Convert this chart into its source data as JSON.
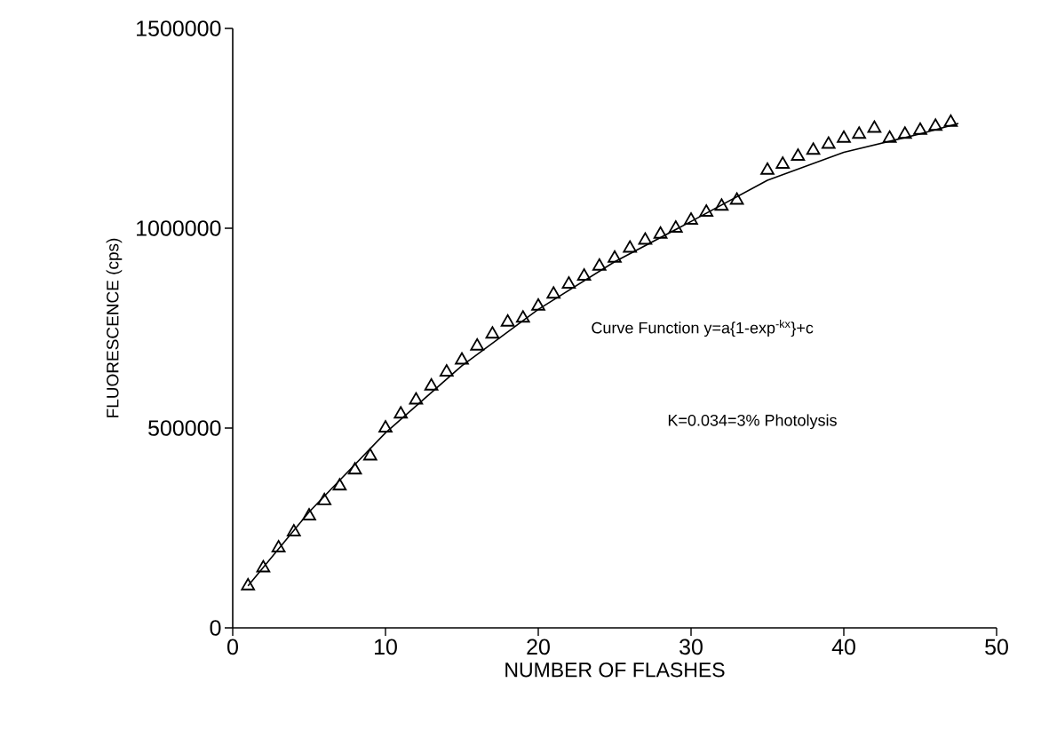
{
  "chart_data": {
    "type": "scatter",
    "xlabel": "NUMBER OF FLASHES",
    "ylabel": "FLUORESCENCE (cps)",
    "xlim": [
      0,
      50
    ],
    "ylim": [
      0,
      1500000
    ],
    "xticks": [
      0,
      10,
      20,
      30,
      40,
      50
    ],
    "yticks": [
      0,
      500000,
      1000000,
      1500000
    ],
    "marker": "triangle",
    "annotations": [
      "Curve Function y=a{1-exp$^{-kx}$}+c",
      "K=0.034=3% Photolysis"
    ],
    "series": [
      {
        "color": "#000000",
        "x": [
          1,
          2,
          3,
          4,
          5,
          6,
          7,
          8,
          9,
          10,
          11,
          12,
          13,
          14,
          15,
          16,
          17,
          18,
          19,
          20,
          21,
          22,
          23,
          24,
          25,
          26,
          27,
          28,
          29,
          30,
          31,
          32,
          33,
          35,
          36,
          37,
          38,
          39,
          40,
          41,
          42,
          43,
          44,
          45,
          46,
          47
        ],
        "values": [
          105000,
          150000,
          200000,
          240000,
          280000,
          318000,
          355000,
          395000,
          430000,
          500000,
          535000,
          570000,
          605000,
          640000,
          670000,
          705000,
          735000,
          765000,
          775000,
          805000,
          835000,
          860000,
          880000,
          905000,
          925000,
          950000,
          970000,
          985000,
          1000000,
          1020000,
          1040000,
          1055000,
          1070000,
          1145000,
          1160000,
          1180000,
          1195000,
          1210000,
          1225000,
          1235000,
          1250000,
          1225000,
          1235000,
          1245000,
          1255000,
          1265000
        ]
      },
      {
        "type": "line",
        "marker": "none",
        "line_style": "solid",
        "color": "#000000",
        "x": [
          1,
          5,
          10,
          15,
          20,
          25,
          30,
          35,
          40,
          45,
          47.5
        ],
        "values": [
          105000,
          290000,
          488000,
          656000,
          797000,
          916000,
          1017000,
          1120000,
          1190000,
          1236000,
          1262000
        ]
      }
    ]
  }
}
